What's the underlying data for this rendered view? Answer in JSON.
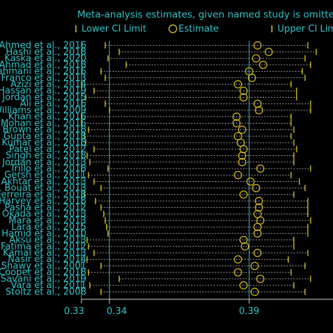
{
  "chart_data": {
    "type": "scatter",
    "title": "Meta-analysis estimates, given named study is omitted",
    "legend": {
      "placement": "top",
      "entries": [
        "Lower CI Limit",
        "Estimate",
        "Upper CI Limit"
      ]
    },
    "x_ticks": [
      {
        "value": 0.33,
        "label": "0.33"
      },
      {
        "value": 0.34,
        "label": "0.34"
      },
      {
        "value": 0.39,
        "label": "0.39"
      }
    ],
    "xlim": [
      0.326,
      0.42
    ],
    "studies": [
      {
        "label": "Ahmed et al., 2016",
        "lower": 0.3385,
        "estimate": 0.393,
        "upper": 0.411
      },
      {
        "label": "Hashi et al., 2018",
        "lower": 0.3435,
        "estimate": 0.397,
        "upper": 0.414
      },
      {
        "label": "Kaska et al., 2020",
        "lower": 0.3395,
        "estimate": 0.3925,
        "upper": 0.41
      },
      {
        "label": "Ahmad et al., 2018",
        "lower": 0.346,
        "estimate": 0.395,
        "upper": 0.412
      },
      {
        "label": "Rahmani et al., 2016",
        "lower": 0.337,
        "estimate": 0.39,
        "upper": 0.409
      },
      {
        "label": "Franco et al., 2013",
        "lower": 0.3385,
        "estimate": 0.391,
        "upper": 0.41
      },
      {
        "label": "Azizi et al., 2014",
        "lower": 0.33,
        "estimate": 0.386,
        "upper": 0.405
      },
      {
        "label": "Hassan et al., 2019",
        "lower": 0.3345,
        "estimate": 0.388,
        "upper": 0.407
      },
      {
        "label": "Jordan et al., 2015",
        "lower": 0.3315,
        "estimate": 0.388,
        "upper": 0.407
      },
      {
        "label": "Ali et al., 2016",
        "lower": 0.3385,
        "estimate": 0.393,
        "upper": 0.412
      },
      {
        "label": "Williams et al., 2009",
        "lower": 0.34,
        "estimate": 0.3935,
        "upper": 0.412
      },
      {
        "label": "Khan et al., 2016",
        "lower": 0.33,
        "estimate": 0.3855,
        "upper": 0.405
      },
      {
        "label": "Mohan et al., 2016",
        "lower": 0.33,
        "estimate": 0.3855,
        "upper": 0.405
      },
      {
        "label": "Brown et al., 2018",
        "lower": 0.3325,
        "estimate": 0.3875,
        "upper": 0.406
      },
      {
        "label": "Gupta et al., 2018",
        "lower": 0.331,
        "estimate": 0.386,
        "upper": 0.405
      },
      {
        "label": "Kumar et al., 2018",
        "lower": 0.3315,
        "estimate": 0.387,
        "upper": 0.406
      },
      {
        "label": "Patel et al., 2012",
        "lower": 0.3345,
        "estimate": 0.388,
        "upper": 0.407
      },
      {
        "label": "Singh et al., 2018",
        "lower": 0.332,
        "estimate": 0.3875,
        "upper": 0.406
      },
      {
        "label": "Jordan et al., 2013",
        "lower": 0.333,
        "estimate": 0.3875,
        "upper": 0.406
      },
      {
        "label": "Trillo et al., 2018",
        "lower": 0.3395,
        "estimate": 0.394,
        "upper": 0.412
      },
      {
        "label": "Gersh et al., 2011",
        "lower": 0.3325,
        "estimate": 0.386,
        "upper": 0.405
      },
      {
        "label": "Akhtar et al., 2013",
        "lower": 0.3345,
        "estimate": 0.3905,
        "upper": 0.408
      },
      {
        "label": "Bouat et al., 2013",
        "lower": 0.337,
        "estimate": 0.3925,
        "upper": 0.41
      },
      {
        "label": "Ferreira et al., 2018",
        "lower": 0.331,
        "estimate": 0.388,
        "upper": 0.406
      },
      {
        "label": "Harvey et al., 2018",
        "lower": 0.335,
        "estimate": 0.3935,
        "upper": 0.411
      },
      {
        "label": "Pasha et al., 2012",
        "lower": 0.337,
        "estimate": 0.3935,
        "upper": 0.411
      },
      {
        "label": "Okada et al., 2013",
        "lower": 0.338,
        "estimate": 0.393,
        "upper": 0.411
      },
      {
        "label": "Mara et al., 2013",
        "lower": 0.3385,
        "estimate": 0.394,
        "upper": 0.412
      },
      {
        "label": "Lara et al., 2015",
        "lower": 0.339,
        "estimate": 0.393,
        "upper": 0.411
      },
      {
        "label": "Hamid et al., 2010",
        "lower": 0.3395,
        "estimate": 0.393,
        "upper": 0.411
      },
      {
        "label": "Aksu et al., 2013",
        "lower": 0.332,
        "estimate": 0.388,
        "upper": 0.406
      },
      {
        "label": "Fatima et al., 2012",
        "lower": 0.3325,
        "estimate": 0.3885,
        "upper": 0.406
      },
      {
        "label": "Kamal et al., 2013",
        "lower": 0.3345,
        "estimate": 0.393,
        "upper": 0.411
      },
      {
        "label": "Nasir et al., 2014",
        "lower": 0.332,
        "estimate": 0.386,
        "upper": 0.404
      },
      {
        "label": "Shawy et al., 2001",
        "lower": 0.337,
        "estimate": 0.392,
        "upper": 0.41
      },
      {
        "label": "Cooper et al., 2018",
        "lower": 0.3325,
        "estimate": 0.386,
        "upper": 0.405
      },
      {
        "label": "Savani et al., 2019",
        "lower": 0.3435,
        "estimate": 0.394,
        "upper": 0.412
      },
      {
        "label": "Vara et al., 2011",
        "lower": 0.333,
        "estimate": 0.388,
        "upper": 0.406
      },
      {
        "label": "Stoltz et al., 2008",
        "lower": 0.337,
        "estimate": 0.392,
        "upper": 0.41
      }
    ]
  },
  "colors": {
    "background": "#000000",
    "text": "#31c3c8",
    "estimate": "#c9b41a",
    "ci_tick": "#d0c010",
    "dash": "#9a9a9a",
    "axis": "#d0d0d0",
    "vline": "#37b7bf"
  }
}
